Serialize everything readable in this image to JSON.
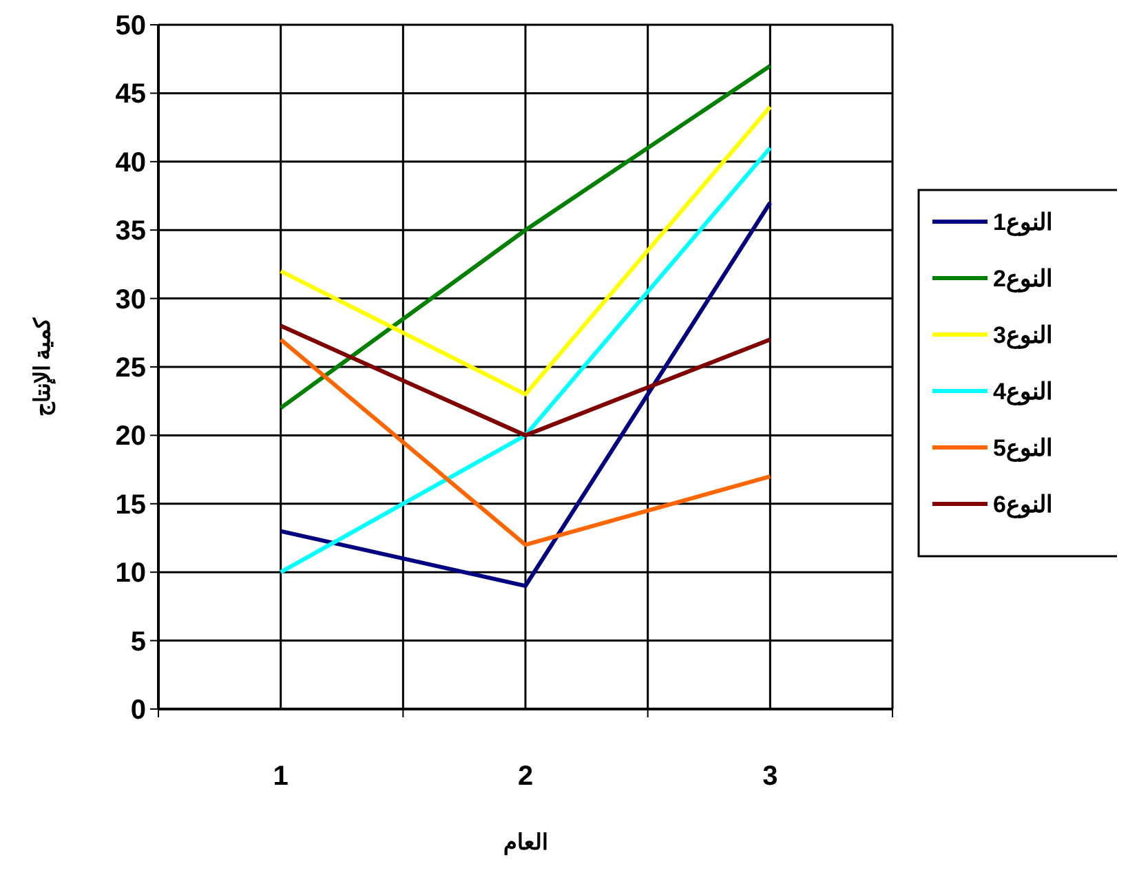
{
  "chart_data": {
    "type": "line",
    "xlabel": "العام",
    "ylabel": "كمية الإنتاج",
    "categories": [
      "1",
      "2",
      "3"
    ],
    "ylim": [
      0,
      50
    ],
    "yticks": [
      0,
      5,
      10,
      15,
      20,
      25,
      30,
      35,
      40,
      45,
      50
    ],
    "grid": true,
    "legend": "right",
    "marker": "none",
    "line_style": "solid",
    "series": [
      {
        "name": "النوع1",
        "color": "#000080",
        "values": [
          13,
          9,
          37
        ]
      },
      {
        "name": "النوع2",
        "color": "#008000",
        "values": [
          22,
          35,
          47
        ]
      },
      {
        "name": "النوع3",
        "color": "#ffff00",
        "values": [
          32,
          23,
          44
        ]
      },
      {
        "name": "النوع4",
        "color": "#00ffff",
        "values": [
          10,
          20,
          41
        ]
      },
      {
        "name": "النوع5",
        "color": "#ff6600",
        "values": [
          27,
          12,
          17
        ]
      },
      {
        "name": "النوع6",
        "color": "#800000",
        "values": [
          28,
          20,
          27
        ]
      }
    ]
  }
}
